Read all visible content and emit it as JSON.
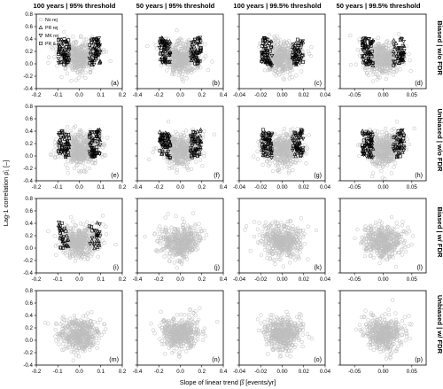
{
  "figure": {
    "xlabel": "Slope of linear trend β̂ [events/yr]",
    "ylabel": "Lag-1 correlation ρ̂₁ [–]",
    "column_titles": [
      "100 years | 95% threshold",
      "50 years | 95% threshold",
      "100 years | 99.5% threshold",
      "50 years | 99.5% threshold"
    ],
    "row_titles": [
      "Biased | w/o FDR",
      "Unbiased | w/o FDR",
      "Biased | w/ FDR",
      "Unbiased | w/ FDR"
    ],
    "panel_labels": [
      "(a)",
      "(b)",
      "(c)",
      "(d)",
      "(e)",
      "(f)",
      "(g)",
      "(h)",
      "(i)",
      "(j)",
      "(k)",
      "(l)",
      "(m)",
      "(n)",
      "(o)",
      "(p)"
    ],
    "legend": [
      "No rej",
      "PR rej",
      "MK rej",
      "PR & MK rej"
    ]
  },
  "colors": {
    "no_rej": "#bdbdbd",
    "rej": "#000000"
  },
  "chart_data": {
    "type": "scatter",
    "grid": false,
    "legend_position": "top-left of panel (a)",
    "columns": [
      {
        "title": "100 years | 95% threshold",
        "xlim": [
          -0.2,
          0.2
        ],
        "xticks": [
          "-0.2",
          "-0.1",
          "0.0",
          "0.1",
          "0.2"
        ],
        "x_spread": 0.045
      },
      {
        "title": "50 years | 95% threshold",
        "xlim": [
          -0.4,
          0.4
        ],
        "xticks": [
          "-0.4",
          "-0.2",
          "0.0",
          "0.2",
          "0.4"
        ],
        "x_spread": 0.09
      },
      {
        "title": "100 years | 99.5% threshold",
        "xlim": [
          -0.04,
          0.04
        ],
        "xticks": [
          "-0.04",
          "-0.02",
          "0.00",
          "0.02",
          "0.04"
        ],
        "x_spread": 0.009
      },
      {
        "title": "50 years | 99.5% threshold",
        "xlim": [
          -0.075,
          0.075
        ],
        "xticks": [
          "-0.05",
          "0.00",
          "0.05"
        ],
        "x_spread": 0.017
      }
    ],
    "ylim": [
      -0.4,
      0.8
    ],
    "yticks": [
      "-0.4",
      "-0.2",
      "0.0",
      "0.2",
      "0.4",
      "0.6",
      "0.8"
    ],
    "panels": [
      {
        "label": "(a)",
        "row": 0,
        "col": 0,
        "rejections": "many"
      },
      {
        "label": "(b)",
        "row": 0,
        "col": 1,
        "rejections": "many"
      },
      {
        "label": "(c)",
        "row": 0,
        "col": 2,
        "rejections": "many"
      },
      {
        "label": "(d)",
        "row": 0,
        "col": 3,
        "rejections": "many"
      },
      {
        "label": "(e)",
        "row": 1,
        "col": 0,
        "rejections": "many"
      },
      {
        "label": "(f)",
        "row": 1,
        "col": 1,
        "rejections": "many"
      },
      {
        "label": "(g)",
        "row": 1,
        "col": 2,
        "rejections": "many"
      },
      {
        "label": "(h)",
        "row": 1,
        "col": 3,
        "rejections": "many"
      },
      {
        "label": "(i)",
        "row": 2,
        "col": 0,
        "rejections": "some"
      },
      {
        "label": "(j)",
        "row": 2,
        "col": 1,
        "rejections": "none"
      },
      {
        "label": "(k)",
        "row": 2,
        "col": 2,
        "rejections": "none"
      },
      {
        "label": "(l)",
        "row": 2,
        "col": 3,
        "rejections": "none"
      },
      {
        "label": "(m)",
        "row": 3,
        "col": 0,
        "rejections": "none"
      },
      {
        "label": "(n)",
        "row": 3,
        "col": 1,
        "rejections": "none"
      },
      {
        "label": "(o)",
        "row": 3,
        "col": 2,
        "rejections": "none"
      },
      {
        "label": "(p)",
        "row": 3,
        "col": 3,
        "rejections": "none"
      }
    ]
  }
}
